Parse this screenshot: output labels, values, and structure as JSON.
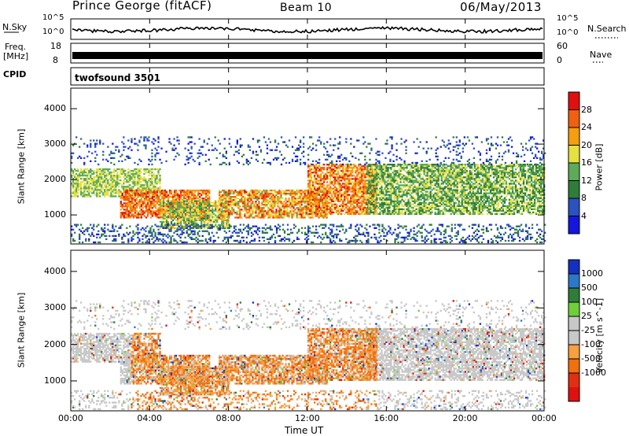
{
  "header": {
    "station": "Prince George (fitACF)",
    "beam": "Beam 10",
    "date": "06/May/2013"
  },
  "sky_panel": {
    "left_label": "N.Sky",
    "right_label": "N.Search",
    "tick_top": "10^5",
    "tick_bottom": "10^0"
  },
  "freq_panel": {
    "label_line1": "Freq.",
    "label_line2": "[MHz]",
    "tick_top": "18",
    "tick_bottom": "8",
    "right_tick_top": "60",
    "right_tick_bottom": "0",
    "right_label": "Nave"
  },
  "cpid_panel": {
    "label": "CPID",
    "value": "twofsound 3501"
  },
  "time_axis": {
    "label": "Time UT",
    "ticks": [
      "00:00",
      "04:00",
      "08:00",
      "12:00",
      "16:00",
      "20:00",
      "00:00"
    ]
  },
  "colors": {
    "power_scale": [
      "#1515e0",
      "#2a52c0",
      "#2f7d3a",
      "#5caa5a",
      "#e6e040",
      "#f59e10",
      "#f06010",
      "#e01010"
    ],
    "velocity_scale": [
      "#1530c0",
      "#2a78c8",
      "#2f7d3a",
      "#6fcf3a",
      "#c8c8c8",
      "#c8c8c8",
      "#f7a040",
      "#f07010",
      "#e03010",
      "#e01010"
    ]
  },
  "chart_data": [
    {
      "type": "heatmap",
      "title": "Power",
      "ylabel": "Slant Range [km]",
      "xlabel": "",
      "ylim": [
        180,
        4580
      ],
      "xlim": [
        0,
        24
      ],
      "yticks": [
        "1000",
        "2000",
        "3000",
        "4000"
      ],
      "colorbar": {
        "label": "Power [dB]",
        "ticks": [
          "4",
          "8",
          "12",
          "16",
          "20",
          "24",
          "28"
        ],
        "range": [
          0,
          32
        ]
      },
      "grid": false
    },
    {
      "type": "heatmap",
      "title": "Velocity",
      "ylabel": "Slant Range [km]",
      "xlabel": "Time UT",
      "ylim": [
        180,
        4580
      ],
      "xlim": [
        0,
        24
      ],
      "yticks": [
        "1000",
        "2000",
        "3000",
        "4000"
      ],
      "colorbar": {
        "label": "Velocity [m s^-1]",
        "ticks": [
          "1000",
          "500",
          "100",
          "25",
          "-25",
          "-100",
          "-500",
          "-1000"
        ]
      },
      "grid": false
    }
  ]
}
